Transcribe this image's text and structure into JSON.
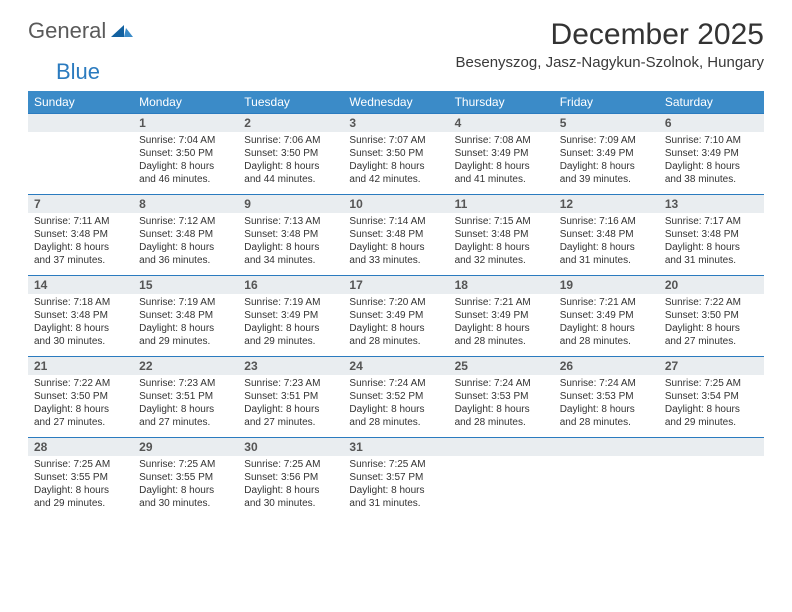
{
  "brand": {
    "text1": "General",
    "text2": "Blue"
  },
  "title": "December 2025",
  "location": "Besenyszog, Jasz-Nagykun-Szolnok, Hungary",
  "colors": {
    "header_bg": "#3b8bc8",
    "header_text": "#ffffff",
    "band_bg": "#e9edf0",
    "band_border": "#2b7bbf",
    "body_text": "#333333",
    "logo_gray": "#5a5a5a",
    "logo_blue": "#2b7bbf"
  },
  "weekdays": [
    "Sunday",
    "Monday",
    "Tuesday",
    "Wednesday",
    "Thursday",
    "Friday",
    "Saturday"
  ],
  "weeks": [
    [
      null,
      {
        "n": "1",
        "sr": "Sunrise: 7:04 AM",
        "ss": "Sunset: 3:50 PM",
        "d1": "Daylight: 8 hours",
        "d2": "and 46 minutes."
      },
      {
        "n": "2",
        "sr": "Sunrise: 7:06 AM",
        "ss": "Sunset: 3:50 PM",
        "d1": "Daylight: 8 hours",
        "d2": "and 44 minutes."
      },
      {
        "n": "3",
        "sr": "Sunrise: 7:07 AM",
        "ss": "Sunset: 3:50 PM",
        "d1": "Daylight: 8 hours",
        "d2": "and 42 minutes."
      },
      {
        "n": "4",
        "sr": "Sunrise: 7:08 AM",
        "ss": "Sunset: 3:49 PM",
        "d1": "Daylight: 8 hours",
        "d2": "and 41 minutes."
      },
      {
        "n": "5",
        "sr": "Sunrise: 7:09 AM",
        "ss": "Sunset: 3:49 PM",
        "d1": "Daylight: 8 hours",
        "d2": "and 39 minutes."
      },
      {
        "n": "6",
        "sr": "Sunrise: 7:10 AM",
        "ss": "Sunset: 3:49 PM",
        "d1": "Daylight: 8 hours",
        "d2": "and 38 minutes."
      }
    ],
    [
      {
        "n": "7",
        "sr": "Sunrise: 7:11 AM",
        "ss": "Sunset: 3:48 PM",
        "d1": "Daylight: 8 hours",
        "d2": "and 37 minutes."
      },
      {
        "n": "8",
        "sr": "Sunrise: 7:12 AM",
        "ss": "Sunset: 3:48 PM",
        "d1": "Daylight: 8 hours",
        "d2": "and 36 minutes."
      },
      {
        "n": "9",
        "sr": "Sunrise: 7:13 AM",
        "ss": "Sunset: 3:48 PM",
        "d1": "Daylight: 8 hours",
        "d2": "and 34 minutes."
      },
      {
        "n": "10",
        "sr": "Sunrise: 7:14 AM",
        "ss": "Sunset: 3:48 PM",
        "d1": "Daylight: 8 hours",
        "d2": "and 33 minutes."
      },
      {
        "n": "11",
        "sr": "Sunrise: 7:15 AM",
        "ss": "Sunset: 3:48 PM",
        "d1": "Daylight: 8 hours",
        "d2": "and 32 minutes."
      },
      {
        "n": "12",
        "sr": "Sunrise: 7:16 AM",
        "ss": "Sunset: 3:48 PM",
        "d1": "Daylight: 8 hours",
        "d2": "and 31 minutes."
      },
      {
        "n": "13",
        "sr": "Sunrise: 7:17 AM",
        "ss": "Sunset: 3:48 PM",
        "d1": "Daylight: 8 hours",
        "d2": "and 31 minutes."
      }
    ],
    [
      {
        "n": "14",
        "sr": "Sunrise: 7:18 AM",
        "ss": "Sunset: 3:48 PM",
        "d1": "Daylight: 8 hours",
        "d2": "and 30 minutes."
      },
      {
        "n": "15",
        "sr": "Sunrise: 7:19 AM",
        "ss": "Sunset: 3:48 PM",
        "d1": "Daylight: 8 hours",
        "d2": "and 29 minutes."
      },
      {
        "n": "16",
        "sr": "Sunrise: 7:19 AM",
        "ss": "Sunset: 3:49 PM",
        "d1": "Daylight: 8 hours",
        "d2": "and 29 minutes."
      },
      {
        "n": "17",
        "sr": "Sunrise: 7:20 AM",
        "ss": "Sunset: 3:49 PM",
        "d1": "Daylight: 8 hours",
        "d2": "and 28 minutes."
      },
      {
        "n": "18",
        "sr": "Sunrise: 7:21 AM",
        "ss": "Sunset: 3:49 PM",
        "d1": "Daylight: 8 hours",
        "d2": "and 28 minutes."
      },
      {
        "n": "19",
        "sr": "Sunrise: 7:21 AM",
        "ss": "Sunset: 3:49 PM",
        "d1": "Daylight: 8 hours",
        "d2": "and 28 minutes."
      },
      {
        "n": "20",
        "sr": "Sunrise: 7:22 AM",
        "ss": "Sunset: 3:50 PM",
        "d1": "Daylight: 8 hours",
        "d2": "and 27 minutes."
      }
    ],
    [
      {
        "n": "21",
        "sr": "Sunrise: 7:22 AM",
        "ss": "Sunset: 3:50 PM",
        "d1": "Daylight: 8 hours",
        "d2": "and 27 minutes."
      },
      {
        "n": "22",
        "sr": "Sunrise: 7:23 AM",
        "ss": "Sunset: 3:51 PM",
        "d1": "Daylight: 8 hours",
        "d2": "and 27 minutes."
      },
      {
        "n": "23",
        "sr": "Sunrise: 7:23 AM",
        "ss": "Sunset: 3:51 PM",
        "d1": "Daylight: 8 hours",
        "d2": "and 27 minutes."
      },
      {
        "n": "24",
        "sr": "Sunrise: 7:24 AM",
        "ss": "Sunset: 3:52 PM",
        "d1": "Daylight: 8 hours",
        "d2": "and 28 minutes."
      },
      {
        "n": "25",
        "sr": "Sunrise: 7:24 AM",
        "ss": "Sunset: 3:53 PM",
        "d1": "Daylight: 8 hours",
        "d2": "and 28 minutes."
      },
      {
        "n": "26",
        "sr": "Sunrise: 7:24 AM",
        "ss": "Sunset: 3:53 PM",
        "d1": "Daylight: 8 hours",
        "d2": "and 28 minutes."
      },
      {
        "n": "27",
        "sr": "Sunrise: 7:25 AM",
        "ss": "Sunset: 3:54 PM",
        "d1": "Daylight: 8 hours",
        "d2": "and 29 minutes."
      }
    ],
    [
      {
        "n": "28",
        "sr": "Sunrise: 7:25 AM",
        "ss": "Sunset: 3:55 PM",
        "d1": "Daylight: 8 hours",
        "d2": "and 29 minutes."
      },
      {
        "n": "29",
        "sr": "Sunrise: 7:25 AM",
        "ss": "Sunset: 3:55 PM",
        "d1": "Daylight: 8 hours",
        "d2": "and 30 minutes."
      },
      {
        "n": "30",
        "sr": "Sunrise: 7:25 AM",
        "ss": "Sunset: 3:56 PM",
        "d1": "Daylight: 8 hours",
        "d2": "and 30 minutes."
      },
      {
        "n": "31",
        "sr": "Sunrise: 7:25 AM",
        "ss": "Sunset: 3:57 PM",
        "d1": "Daylight: 8 hours",
        "d2": "and 31 minutes."
      },
      null,
      null,
      null
    ]
  ]
}
